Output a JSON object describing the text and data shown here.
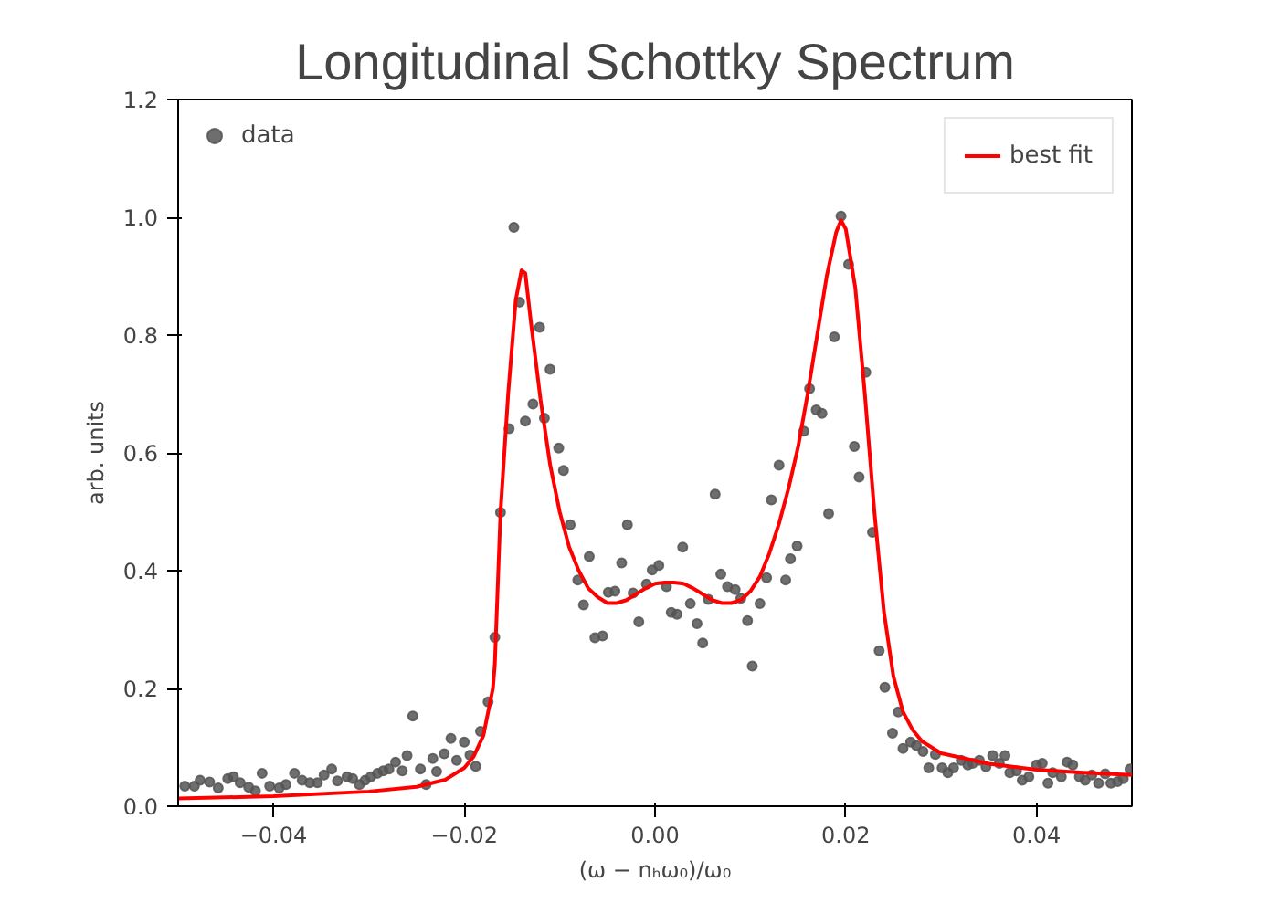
{
  "chart_data": {
    "type": "scatter",
    "title": "Longitudinal Schottky Spectrum",
    "xlabel": "(ω − nₕω₀)/ω₀",
    "ylabel": "arb. units",
    "xlim": [
      -0.05,
      0.05
    ],
    "ylim": [
      0,
      1.2
    ],
    "xticks": [
      {
        "value": -0.04,
        "label": "−0.04"
      },
      {
        "value": -0.02,
        "label": "−0.02"
      },
      {
        "value": 0,
        "label": "0.00"
      },
      {
        "value": 0.02,
        "label": "0.02"
      },
      {
        "value": 0.04,
        "label": "0.04"
      }
    ],
    "yticks": [
      {
        "value": 0,
        "label": "0.0"
      },
      0.2,
      0.4,
      0.6,
      0.8,
      {
        "value": 1,
        "label": "1.0"
      },
      1.2
    ],
    "grid": false,
    "legend": "top",
    "marker": "circle",
    "series": [
      {
        "name": "data",
        "color": "#555555",
        "x": [
          -0.0493,
          -0.0483,
          -0.0477,
          -0.0467,
          -0.0458,
          -0.0448,
          -0.0442,
          -0.0435,
          -0.0426,
          -0.0419,
          -0.0412,
          -0.0404,
          -0.0394,
          -0.0387,
          -0.0378,
          -0.037,
          -0.0362,
          -0.0354,
          -0.0347,
          -0.0339,
          -0.0333,
          -0.0323,
          -0.0317,
          -0.031,
          -0.0304,
          -0.0298,
          -0.0291,
          -0.0285,
          -0.0279,
          -0.0272,
          -0.0265,
          -0.026,
          -0.0254,
          -0.0246,
          -0.024,
          -0.0233,
          -0.0229,
          -0.0221,
          -0.0214,
          -0.0208,
          -0.02,
          -0.0194,
          -0.0188,
          -0.0183,
          -0.0175,
          -0.0168,
          -0.0162,
          -0.0153,
          -0.0148,
          -0.0142,
          -0.0136,
          -0.0128,
          -0.0121,
          -0.0116,
          -0.011,
          -0.0101,
          -0.0096,
          -0.0089,
          -0.0081,
          -0.0075,
          -0.0069,
          -0.0063,
          -0.0055,
          -0.0049,
          -0.0042,
          -0.0035,
          -0.0029,
          -0.0023,
          -0.0017,
          -0.0009,
          -0.0003,
          0.0004,
          0.0012,
          0.0017,
          0.0023,
          0.0029,
          0.0037,
          0.0044,
          0.005,
          0.0056,
          0.0063,
          0.0069,
          0.0076,
          0.0084,
          0.009,
          0.0097,
          0.0102,
          0.011,
          0.0117,
          0.0122,
          0.013,
          0.0137,
          0.0142,
          0.0149,
          0.0156,
          0.0162,
          0.0169,
          0.0175,
          0.0182,
          0.0188,
          0.0195,
          0.0203,
          0.0209,
          0.0214,
          0.0221,
          0.0228,
          0.0235,
          0.0241,
          0.0249,
          0.0255,
          0.026,
          0.0268,
          0.0274,
          0.0281,
          0.0287,
          0.0294,
          0.0301,
          0.0307,
          0.0313,
          0.0321,
          0.0328,
          0.0333,
          0.034,
          0.0347,
          0.0354,
          0.0361,
          0.0367,
          0.0372,
          0.0379,
          0.0385,
          0.0392,
          0.04,
          0.0406,
          0.0412,
          0.0417,
          0.0426,
          0.0432,
          0.0438,
          0.0445,
          0.0451,
          0.0458,
          0.0465,
          0.0472,
          0.0478,
          0.0485,
          0.0491,
          0.0498
        ],
        "values": [
          0.034,
          0.034,
          0.044,
          0.041,
          0.031,
          0.047,
          0.05,
          0.04,
          0.032,
          0.026,
          0.056,
          0.034,
          0.031,
          0.037,
          0.056,
          0.044,
          0.04,
          0.04,
          0.053,
          0.063,
          0.043,
          0.05,
          0.047,
          0.037,
          0.044,
          0.05,
          0.056,
          0.06,
          0.063,
          0.075,
          0.06,
          0.086,
          0.153,
          0.063,
          0.037,
          0.081,
          0.059,
          0.089,
          0.115,
          0.078,
          0.109,
          0.087,
          0.068,
          0.127,
          0.177,
          0.287,
          0.499,
          0.641,
          0.983,
          0.856,
          0.654,
          0.683,
          0.813,
          0.659,
          0.742,
          0.608,
          0.57,
          0.478,
          0.384,
          0.342,
          0.424,
          0.286,
          0.289,
          0.363,
          0.365,
          0.413,
          0.478,
          0.362,
          0.313,
          0.377,
          0.401,
          0.409,
          0.373,
          0.329,
          0.326,
          0.44,
          0.344,
          0.31,
          0.277,
          0.351,
          0.53,
          0.394,
          0.373,
          0.368,
          0.353,
          0.315,
          0.238,
          0.344,
          0.388,
          0.52,
          0.579,
          0.384,
          0.42,
          0.442,
          0.637,
          0.709,
          0.673,
          0.667,
          0.497,
          0.797,
          1.002,
          0.92,
          0.611,
          0.559,
          0.737,
          0.465,
          0.264,
          0.202,
          0.124,
          0.16,
          0.098,
          0.109,
          0.103,
          0.093,
          0.065,
          0.088,
          0.065,
          0.057,
          0.065,
          0.078,
          0.07,
          0.073,
          0.078,
          0.067,
          0.086,
          0.073,
          0.086,
          0.057,
          0.06,
          0.044,
          0.05,
          0.07,
          0.073,
          0.039,
          0.057,
          0.05,
          0.075,
          0.07,
          0.05,
          0.044,
          0.053,
          0.039,
          0.055,
          0.039,
          0.042,
          0.047,
          0.063
        ]
      },
      {
        "name": "best fit",
        "type": "line",
        "color": "#ff0000",
        "marker": "none",
        "x": [
          -0.05,
          -0.04,
          -0.03,
          -0.025,
          -0.022,
          -0.02,
          -0.019,
          -0.018,
          -0.017,
          -0.0168,
          -0.0162,
          -0.0154,
          -0.0146,
          -0.014,
          -0.0136,
          -0.013,
          -0.012,
          -0.011,
          -0.01,
          -0.009,
          -0.008,
          -0.007,
          -0.006,
          -0.005,
          -0.004,
          -0.003,
          -0.002,
          -0.001,
          0,
          0.001,
          0.002,
          0.003,
          0.004,
          0.005,
          0.006,
          0.007,
          0.008,
          0.009,
          0.01,
          0.011,
          0.012,
          0.013,
          0.014,
          0.015,
          0.016,
          0.017,
          0.018,
          0.019,
          0.0195,
          0.02,
          0.021,
          0.022,
          0.023,
          0.024,
          0.025,
          0.026,
          0.027,
          0.028,
          0.03,
          0.035,
          0.04,
          0.045,
          0.05
        ],
        "values": [
          0.013,
          0.017,
          0.025,
          0.033,
          0.045,
          0.065,
          0.085,
          0.12,
          0.2,
          0.24,
          0.5,
          0.7,
          0.86,
          0.91,
          0.905,
          0.82,
          0.69,
          0.58,
          0.5,
          0.44,
          0.4,
          0.37,
          0.355,
          0.345,
          0.345,
          0.35,
          0.36,
          0.37,
          0.378,
          0.38,
          0.38,
          0.378,
          0.37,
          0.36,
          0.35,
          0.345,
          0.345,
          0.35,
          0.365,
          0.39,
          0.43,
          0.48,
          0.54,
          0.61,
          0.7,
          0.8,
          0.9,
          0.975,
          0.995,
          0.98,
          0.88,
          0.7,
          0.5,
          0.33,
          0.22,
          0.16,
          0.13,
          0.11,
          0.09,
          0.072,
          0.062,
          0.057,
          0.053
        ]
      }
    ]
  }
}
